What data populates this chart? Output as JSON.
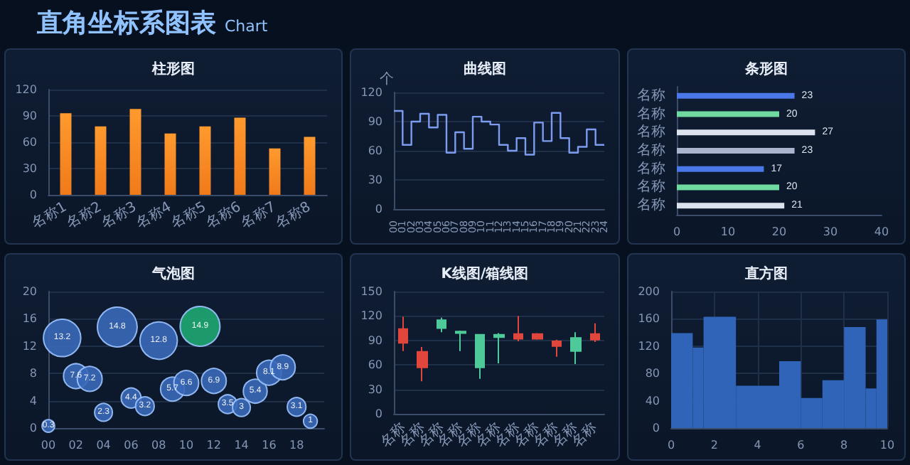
{
  "chart_data": [
    {
      "type": "other",
      "title": "直角坐标系图表",
      "subtitle": "Chart"
    },
    {
      "type": "bar",
      "title": "柱形图",
      "categories": [
        "名称1",
        "名称2",
        "名称3",
        "名称4",
        "名称5",
        "名称6",
        "名称7",
        "名称8"
      ],
      "values": [
        93,
        78,
        98,
        70,
        78,
        88,
        53,
        66
      ],
      "color": "#f07a1a",
      "ylim": [
        0,
        120
      ],
      "yticks": [
        0,
        30,
        60,
        90,
        120
      ],
      "grid": true
    },
    {
      "type": "step",
      "title": "曲线图",
      "ylabel": "个",
      "categories": [
        "00",
        "01",
        "02",
        "03",
        "04",
        "05",
        "06",
        "07",
        "08",
        "09",
        "10",
        "11",
        "12",
        "13",
        "14",
        "15",
        "16",
        "17",
        "18",
        "19",
        "20",
        "21",
        "22",
        "23",
        "24"
      ],
      "values": [
        101,
        66,
        90,
        98,
        84,
        97,
        58,
        79,
        62,
        95,
        90,
        87,
        66,
        60,
        73,
        56,
        89,
        70,
        99,
        73,
        58,
        64,
        82,
        66,
        66
      ],
      "color": "#7d9cf0",
      "ylim": [
        0,
        120
      ],
      "yticks": [
        0,
        30,
        60,
        90,
        120
      ],
      "grid": true
    },
    {
      "type": "bar",
      "title": "条形图",
      "orientation": "horizontal",
      "categories": [
        "名称",
        "名称",
        "名称",
        "名称",
        "名称",
        "名称",
        "名称"
      ],
      "values": [
        23,
        20,
        27,
        23,
        17,
        20,
        21
      ],
      "colors": [
        "#4a78e8",
        "#6fd9a0",
        "#dde3ee",
        "#aab4cc",
        "#4a78e8",
        "#6fd9a0",
        "#dde3ee"
      ],
      "xlim": [
        0,
        40
      ],
      "xticks": [
        0,
        10,
        20,
        30,
        40
      ],
      "data_labels": true
    },
    {
      "type": "bubble",
      "title": "气泡图",
      "x": [
        0,
        1,
        2,
        3,
        4,
        5,
        6,
        7,
        8,
        9,
        10,
        11,
        12,
        13,
        14,
        15,
        16,
        17,
        18,
        19
      ],
      "values": [
        0.3,
        13.2,
        7.6,
        7.2,
        2.3,
        14.8,
        4.4,
        3.2,
        12.8,
        5.7,
        6.6,
        14.9,
        6.9,
        3.5,
        3,
        5.4,
        8.1,
        8.9,
        3.1,
        1
      ],
      "sizes": [
        0.1,
        0.88,
        0.39,
        0.39,
        0.2,
        1,
        0.25,
        0.22,
        0.88,
        0.36,
        0.39,
        1,
        0.39,
        0.22,
        0.2,
        0.36,
        0.39,
        0.39,
        0.22,
        0.12
      ],
      "colors": [
        "#3a68b8",
        "#3a68b8",
        "#3a68b8",
        "#3a68b8",
        "#3a68b8",
        "#3a68b8",
        "#3a68b8",
        "#3a68b8",
        "#3a68b8",
        "#3a68b8",
        "#3a68b8",
        "#1fa872",
        "#3a68b8",
        "#3a68b8",
        "#3a68b8",
        "#3a68b8",
        "#3a68b8",
        "#3a68b8",
        "#3a68b8",
        "#3a68b8"
      ],
      "xlim": [
        0,
        20
      ],
      "xticks": [
        {
          "value": 0,
          "label": "00"
        },
        {
          "value": 2,
          "label": "02"
        },
        {
          "value": 4,
          "label": "04"
        },
        {
          "value": 6,
          "label": "06"
        },
        {
          "value": 8,
          "label": "08"
        },
        {
          "value": 10,
          "label": "10"
        },
        {
          "value": 12,
          "label": "12"
        },
        {
          "value": 14,
          "label": "14"
        },
        {
          "value": 16,
          "label": "16"
        },
        {
          "value": 18,
          "label": "18"
        }
      ],
      "ylim": [
        0,
        20
      ],
      "yticks": [
        0,
        4,
        8,
        12,
        16,
        20
      ],
      "grid": "y",
      "data_labels": true
    },
    {
      "type": "candlestick",
      "title": "K线图/箱线图",
      "categories": [
        "名称",
        "名称",
        "名称",
        "名称",
        "名称",
        "名称",
        "名称",
        "名称",
        "名称",
        "名称",
        "名称"
      ],
      "ohlc": [
        [
          87,
          119,
          77,
          104
        ],
        [
          57,
          82,
          40,
          76
        ],
        [
          115,
          118,
          100,
          105
        ],
        [
          101,
          102,
          77,
          99
        ],
        [
          97,
          98,
          43,
          57
        ],
        [
          97,
          99,
          62,
          94
        ],
        [
          92,
          120,
          89,
          98
        ],
        [
          92,
          99,
          91,
          98
        ],
        [
          83,
          91,
          70,
          89
        ],
        [
          93,
          100,
          61,
          77
        ],
        [
          91,
          111,
          88,
          98
        ]
      ],
      "colors": [
        "#e0463c",
        "#e0463c",
        "#4ec99a",
        "#4ec99a",
        "#4ec99a",
        "#4ec99a",
        "#e0463c",
        "#e0463c",
        "#e0463c",
        "#4ec99a",
        "#e0463c"
      ],
      "ylim": [
        0,
        150
      ],
      "yticks": [
        0,
        30,
        60,
        90,
        120,
        150
      ],
      "grid": true
    },
    {
      "type": "histogram",
      "title": "直方图",
      "bins": [
        0,
        1,
        1.5,
        3,
        5,
        6,
        7,
        8,
        9,
        9.5,
        10
      ],
      "values": [
        139,
        118,
        163,
        62,
        98,
        44,
        70,
        148,
        58,
        159
      ],
      "color": "#2f64b8",
      "xlim": [
        0,
        10
      ],
      "xticks": [
        0,
        2,
        4,
        6,
        8,
        10
      ],
      "ylim": [
        0,
        200
      ],
      "yticks": [
        0,
        40,
        80,
        120,
        160,
        200
      ],
      "grid": true
    }
  ]
}
